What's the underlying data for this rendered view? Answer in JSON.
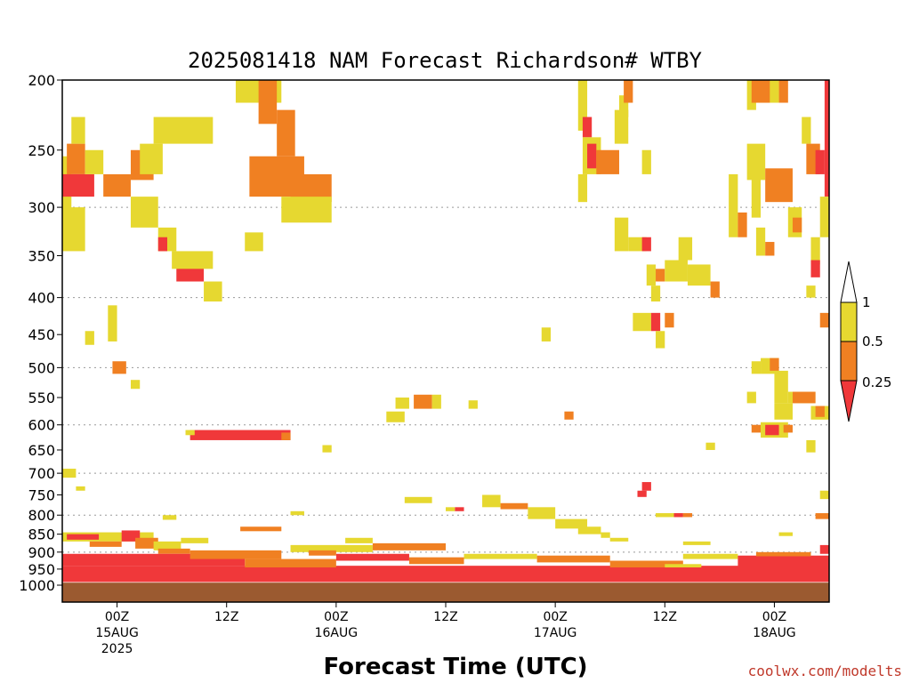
{
  "title": "2025081418 NAM Forecast Richardson# WTBY",
  "xlabel": "Forecast Time (UTC)",
  "credit": "coolwx.com/modelts",
  "colors": {
    "lt_0_25": "#f0383a",
    "r_0_25_0_5": "#f08022",
    "r_0_5_1": "#e6d830",
    "ground": "#9b5a30",
    "grid": "#999999"
  },
  "chart_data": {
    "type": "heatmap",
    "title": "2025081418 NAM Forecast Richardson# WTBY",
    "xlabel": "Forecast Time (UTC)",
    "ylabel": "",
    "y_scale": "log-pressure (inverted)",
    "ylim": [
      1000,
      200
    ],
    "y_ticks": [
      200,
      250,
      300,
      350,
      400,
      450,
      500,
      550,
      600,
      650,
      700,
      750,
      800,
      850,
      900,
      950,
      1000
    ],
    "y_gridlines": [
      300,
      400,
      500,
      600,
      700,
      800,
      900
    ],
    "x_range_hours": [
      0,
      84
    ],
    "x_ticks": [
      {
        "hour": 6,
        "label": "00Z",
        "label2": "15AUG",
        "label3": "2025"
      },
      {
        "hour": 18,
        "label": "12Z",
        "label2": "",
        "label3": ""
      },
      {
        "hour": 30,
        "label": "00Z",
        "label2": "16AUG",
        "label3": ""
      },
      {
        "hour": 42,
        "label": "12Z",
        "label2": "",
        "label3": ""
      },
      {
        "hour": 54,
        "label": "00Z",
        "label2": "17AUG",
        "label3": ""
      },
      {
        "hour": 66,
        "label": "12Z",
        "label2": "",
        "label3": ""
      },
      {
        "hour": 78,
        "label": "00Z",
        "label2": "18AUG",
        "label3": ""
      }
    ],
    "legend": {
      "placement": "right",
      "labels": [
        "1",
        "0.5",
        "0.25"
      ]
    },
    "cells": [
      {
        "t0": 0.0,
        "t1": 1.0,
        "p0": 255,
        "p1": 320,
        "cls": "y"
      },
      {
        "t0": 0.0,
        "t1": 2.5,
        "p0": 300,
        "p1": 345,
        "cls": "y"
      },
      {
        "t0": 0.5,
        "t1": 2.5,
        "p0": 245,
        "p1": 270,
        "cls": "o"
      },
      {
        "t0": 0.0,
        "t1": 3.5,
        "p0": 270,
        "p1": 290,
        "cls": "r"
      },
      {
        "t0": 1.0,
        "t1": 2.5,
        "p0": 225,
        "p1": 245,
        "cls": "y"
      },
      {
        "t0": 2.5,
        "t1": 4.5,
        "p0": 250,
        "p1": 270,
        "cls": "y"
      },
      {
        "t0": 4.5,
        "t1": 7.5,
        "p0": 270,
        "p1": 290,
        "cls": "o"
      },
      {
        "t0": 7.5,
        "t1": 10.0,
        "p0": 250,
        "p1": 275,
        "cls": "o"
      },
      {
        "t0": 10.0,
        "t1": 16.5,
        "p0": 225,
        "p1": 245,
        "cls": "y"
      },
      {
        "t0": 8.5,
        "t1": 11.0,
        "p0": 245,
        "p1": 270,
        "cls": "y"
      },
      {
        "t0": 7.5,
        "t1": 10.5,
        "p0": 290,
        "p1": 320,
        "cls": "y"
      },
      {
        "t0": 10.5,
        "t1": 12.5,
        "p0": 320,
        "p1": 345,
        "cls": "y"
      },
      {
        "t0": 10.5,
        "t1": 11.5,
        "p0": 330,
        "p1": 345,
        "cls": "r"
      },
      {
        "t0": 12.5,
        "t1": 15.5,
        "p0": 355,
        "p1": 380,
        "cls": "r"
      },
      {
        "t0": 12.0,
        "t1": 16.5,
        "p0": 345,
        "p1": 365,
        "cls": "y"
      },
      {
        "t0": 15.5,
        "t1": 17.5,
        "p0": 380,
        "p1": 405,
        "cls": "y"
      },
      {
        "t0": 19.0,
        "t1": 24.0,
        "p0": 200,
        "p1": 215,
        "cls": "y"
      },
      {
        "t0": 21.5,
        "t1": 23.5,
        "p0": 200,
        "p1": 230,
        "cls": "o"
      },
      {
        "t0": 23.5,
        "t1": 25.5,
        "p0": 220,
        "p1": 255,
        "cls": "o"
      },
      {
        "t0": 20.5,
        "t1": 26.5,
        "p0": 255,
        "p1": 290,
        "cls": "o"
      },
      {
        "t0": 25.0,
        "t1": 29.5,
        "p0": 270,
        "p1": 295,
        "cls": "o"
      },
      {
        "t0": 24.0,
        "t1": 29.5,
        "p0": 290,
        "p1": 315,
        "cls": "y"
      },
      {
        "t0": 20.0,
        "t1": 22.0,
        "p0": 325,
        "p1": 345,
        "cls": "y"
      },
      {
        "t0": 5.0,
        "t1": 6.0,
        "p0": 410,
        "p1": 460,
        "cls": "y"
      },
      {
        "t0": 2.5,
        "t1": 3.5,
        "p0": 445,
        "p1": 465,
        "cls": "y"
      },
      {
        "t0": 5.5,
        "t1": 7.0,
        "p0": 490,
        "p1": 510,
        "cls": "o"
      },
      {
        "t0": 7.5,
        "t1": 8.5,
        "p0": 520,
        "p1": 535,
        "cls": "y"
      },
      {
        "t0": 14.0,
        "t1": 25.0,
        "p0": 610,
        "p1": 630,
        "cls": "r"
      },
      {
        "t0": 13.5,
        "t1": 14.5,
        "p0": 610,
        "p1": 620,
        "cls": "y"
      },
      {
        "t0": 24.0,
        "t1": 25.0,
        "p0": 615,
        "p1": 630,
        "cls": "o"
      },
      {
        "t0": 0.0,
        "t1": 1.5,
        "p0": 690,
        "p1": 710,
        "cls": "y"
      },
      {
        "t0": 1.5,
        "t1": 2.5,
        "p0": 730,
        "p1": 740,
        "cls": "y"
      },
      {
        "t0": 28.5,
        "t1": 29.5,
        "p0": 640,
        "p1": 655,
        "cls": "y"
      },
      {
        "t0": 36.5,
        "t1": 38.0,
        "p0": 550,
        "p1": 570,
        "cls": "y"
      },
      {
        "t0": 38.5,
        "t1": 40.5,
        "p0": 545,
        "p1": 570,
        "cls": "o"
      },
      {
        "t0": 40.5,
        "t1": 41.5,
        "p0": 545,
        "p1": 570,
        "cls": "y"
      },
      {
        "t0": 44.5,
        "t1": 45.5,
        "p0": 555,
        "p1": 570,
        "cls": "y"
      },
      {
        "t0": 35.5,
        "t1": 37.5,
        "p0": 575,
        "p1": 595,
        "cls": "y"
      },
      {
        "t0": 52.5,
        "t1": 53.5,
        "p0": 440,
        "p1": 460,
        "cls": "y"
      },
      {
        "t0": 55.0,
        "t1": 56.0,
        "p0": 575,
        "p1": 590,
        "cls": "o"
      },
      {
        "t0": 37.5,
        "t1": 40.5,
        "p0": 755,
        "p1": 770,
        "cls": "y"
      },
      {
        "t0": 46.0,
        "t1": 48.0,
        "p0": 750,
        "p1": 780,
        "cls": "y"
      },
      {
        "t0": 48.0,
        "t1": 51.0,
        "p0": 770,
        "p1": 785,
        "cls": "o"
      },
      {
        "t0": 43.0,
        "t1": 44.0,
        "p0": 780,
        "p1": 790,
        "cls": "r"
      },
      {
        "t0": 42.0,
        "t1": 43.0,
        "p0": 780,
        "p1": 790,
        "cls": "y"
      },
      {
        "t0": 51.0,
        "t1": 54.0,
        "p0": 780,
        "p1": 810,
        "cls": "y"
      },
      {
        "t0": 54.0,
        "t1": 57.5,
        "p0": 810,
        "p1": 835,
        "cls": "y"
      },
      {
        "t0": 56.5,
        "t1": 59.0,
        "p0": 830,
        "p1": 850,
        "cls": "y"
      },
      {
        "t0": 25.0,
        "t1": 26.5,
        "p0": 790,
        "p1": 800,
        "cls": "y"
      },
      {
        "t0": 11.0,
        "t1": 12.5,
        "p0": 800,
        "p1": 812,
        "cls": "y"
      },
      {
        "t0": 19.5,
        "t1": 24.0,
        "p0": 830,
        "p1": 842,
        "cls": "o"
      },
      {
        "t0": 56.5,
        "t1": 57.5,
        "p0": 200,
        "p1": 235,
        "cls": "y"
      },
      {
        "t0": 57.0,
        "t1": 58.0,
        "p0": 225,
        "p1": 240,
        "cls": "r"
      },
      {
        "t0": 57.0,
        "t1": 59.0,
        "p0": 240,
        "p1": 270,
        "cls": "y"
      },
      {
        "t0": 57.5,
        "t1": 58.5,
        "p0": 245,
        "p1": 265,
        "cls": "r"
      },
      {
        "t0": 58.5,
        "t1": 61.0,
        "p0": 250,
        "p1": 270,
        "cls": "o"
      },
      {
        "t0": 60.5,
        "t1": 62.0,
        "p0": 220,
        "p1": 245,
        "cls": "y"
      },
      {
        "t0": 61.0,
        "t1": 62.0,
        "p0": 210,
        "p1": 225,
        "cls": "y"
      },
      {
        "t0": 61.5,
        "t1": 62.5,
        "p0": 200,
        "p1": 215,
        "cls": "o"
      },
      {
        "t0": 56.5,
        "t1": 57.5,
        "p0": 270,
        "p1": 295,
        "cls": "y"
      },
      {
        "t0": 63.5,
        "t1": 64.5,
        "p0": 250,
        "p1": 270,
        "cls": "y"
      },
      {
        "t0": 60.5,
        "t1": 62.0,
        "p0": 310,
        "p1": 345,
        "cls": "y"
      },
      {
        "t0": 62.0,
        "t1": 64.0,
        "p0": 330,
        "p1": 345,
        "cls": "y"
      },
      {
        "t0": 63.5,
        "t1": 64.5,
        "p0": 330,
        "p1": 345,
        "cls": "r"
      },
      {
        "t0": 64.0,
        "t1": 65.0,
        "p0": 360,
        "p1": 385,
        "cls": "y"
      },
      {
        "t0": 65.0,
        "t1": 66.0,
        "p0": 365,
        "p1": 380,
        "cls": "o"
      },
      {
        "t0": 66.0,
        "t1": 68.5,
        "p0": 355,
        "p1": 380,
        "cls": "y"
      },
      {
        "t0": 67.5,
        "t1": 69.0,
        "p0": 330,
        "p1": 355,
        "cls": "y"
      },
      {
        "t0": 68.5,
        "t1": 71.0,
        "p0": 360,
        "p1": 385,
        "cls": "y"
      },
      {
        "t0": 71.0,
        "t1": 72.0,
        "p0": 380,
        "p1": 400,
        "cls": "o"
      },
      {
        "t0": 64.5,
        "t1": 65.5,
        "p0": 385,
        "p1": 405,
        "cls": "y"
      },
      {
        "t0": 62.5,
        "t1": 64.5,
        "p0": 420,
        "p1": 445,
        "cls": "y"
      },
      {
        "t0": 64.5,
        "t1": 65.5,
        "p0": 420,
        "p1": 445,
        "cls": "r"
      },
      {
        "t0": 65.0,
        "t1": 66.0,
        "p0": 445,
        "p1": 470,
        "cls": "y"
      },
      {
        "t0": 66.0,
        "t1": 67.0,
        "p0": 420,
        "p1": 440,
        "cls": "o"
      },
      {
        "t0": 76.0,
        "t1": 78.5,
        "p0": 200,
        "p1": 215,
        "cls": "y"
      },
      {
        "t0": 75.0,
        "t1": 76.0,
        "p0": 200,
        "p1": 220,
        "cls": "y"
      },
      {
        "t0": 75.5,
        "t1": 77.5,
        "p0": 200,
        "p1": 215,
        "cls": "o"
      },
      {
        "t0": 78.5,
        "t1": 79.5,
        "p0": 200,
        "p1": 215,
        "cls": "o"
      },
      {
        "t0": 75.0,
        "t1": 77.0,
        "p0": 245,
        "p1": 275,
        "cls": "y"
      },
      {
        "t0": 77.0,
        "t1": 80.0,
        "p0": 265,
        "p1": 295,
        "cls": "o"
      },
      {
        "t0": 73.0,
        "t1": 74.0,
        "p0": 270,
        "p1": 330,
        "cls": "y"
      },
      {
        "t0": 74.0,
        "t1": 75.0,
        "p0": 305,
        "p1": 330,
        "cls": "o"
      },
      {
        "t0": 75.5,
        "t1": 76.5,
        "p0": 270,
        "p1": 310,
        "cls": "y"
      },
      {
        "t0": 76.0,
        "t1": 77.0,
        "p0": 320,
        "p1": 350,
        "cls": "y"
      },
      {
        "t0": 77.0,
        "t1": 78.0,
        "p0": 335,
        "p1": 350,
        "cls": "o"
      },
      {
        "t0": 79.5,
        "t1": 81.0,
        "p0": 300,
        "p1": 330,
        "cls": "y"
      },
      {
        "t0": 80.0,
        "t1": 81.0,
        "p0": 310,
        "p1": 325,
        "cls": "o"
      },
      {
        "t0": 81.0,
        "t1": 82.0,
        "p0": 225,
        "p1": 245,
        "cls": "y"
      },
      {
        "t0": 81.5,
        "t1": 83.0,
        "p0": 245,
        "p1": 270,
        "cls": "o"
      },
      {
        "t0": 82.5,
        "t1": 83.5,
        "p0": 250,
        "p1": 270,
        "cls": "r"
      },
      {
        "t0": 83.5,
        "t1": 84.0,
        "p0": 200,
        "p1": 290,
        "cls": "r"
      },
      {
        "t0": 82.0,
        "t1": 83.0,
        "p0": 330,
        "p1": 360,
        "cls": "y"
      },
      {
        "t0": 82.0,
        "t1": 83.0,
        "p0": 355,
        "p1": 375,
        "cls": "r"
      },
      {
        "t0": 83.0,
        "t1": 84.0,
        "p0": 290,
        "p1": 330,
        "cls": "y"
      },
      {
        "t0": 81.5,
        "t1": 82.5,
        "p0": 385,
        "p1": 400,
        "cls": "y"
      },
      {
        "t0": 83.0,
        "t1": 84.0,
        "p0": 420,
        "p1": 440,
        "cls": "o"
      },
      {
        "t0": 75.5,
        "t1": 76.5,
        "p0": 490,
        "p1": 510,
        "cls": "y"
      },
      {
        "t0": 76.5,
        "t1": 78.5,
        "p0": 485,
        "p1": 510,
        "cls": "y"
      },
      {
        "t0": 77.5,
        "t1": 78.5,
        "p0": 485,
        "p1": 505,
        "cls": "o"
      },
      {
        "t0": 78.0,
        "t1": 79.5,
        "p0": 505,
        "p1": 560,
        "cls": "y"
      },
      {
        "t0": 79.5,
        "t1": 82.5,
        "p0": 540,
        "p1": 560,
        "cls": "y"
      },
      {
        "t0": 80.0,
        "t1": 82.5,
        "p0": 540,
        "p1": 560,
        "cls": "o"
      },
      {
        "t0": 78.0,
        "t1": 80.0,
        "p0": 560,
        "p1": 590,
        "cls": "y"
      },
      {
        "t0": 82.0,
        "t1": 84.0,
        "p0": 565,
        "p1": 590,
        "cls": "y"
      },
      {
        "t0": 82.5,
        "t1": 83.5,
        "p0": 565,
        "p1": 585,
        "cls": "o"
      },
      {
        "t0": 76.5,
        "t1": 79.5,
        "p0": 595,
        "p1": 625,
        "cls": "y"
      },
      {
        "t0": 77.0,
        "t1": 78.5,
        "p0": 600,
        "p1": 620,
        "cls": "r"
      },
      {
        "t0": 75.5,
        "t1": 76.5,
        "p0": 600,
        "p1": 615,
        "cls": "o"
      },
      {
        "t0": 79.0,
        "t1": 80.0,
        "p0": 600,
        "p1": 615,
        "cls": "o"
      },
      {
        "t0": 75.0,
        "t1": 76.0,
        "p0": 540,
        "p1": 560,
        "cls": "y"
      },
      {
        "t0": 81.5,
        "t1": 82.5,
        "p0": 630,
        "p1": 655,
        "cls": "y"
      },
      {
        "t0": 70.5,
        "t1": 71.5,
        "p0": 635,
        "p1": 650,
        "cls": "y"
      },
      {
        "t0": 63.5,
        "t1": 64.5,
        "p0": 720,
        "p1": 740,
        "cls": "r"
      },
      {
        "t0": 63.0,
        "t1": 64.0,
        "p0": 740,
        "p1": 755,
        "cls": "r"
      },
      {
        "t0": 83.0,
        "t1": 84.0,
        "p0": 740,
        "p1": 760,
        "cls": "y"
      },
      {
        "t0": 65.0,
        "t1": 68.0,
        "p0": 795,
        "p1": 805,
        "cls": "y"
      },
      {
        "t0": 67.0,
        "t1": 68.0,
        "p0": 795,
        "p1": 805,
        "cls": "r"
      },
      {
        "t0": 68.0,
        "t1": 69.0,
        "p0": 795,
        "p1": 805,
        "cls": "o"
      },
      {
        "t0": 82.5,
        "t1": 84.0,
        "p0": 795,
        "p1": 810,
        "cls": "o"
      },
      {
        "t0": 59.0,
        "t1": 60.0,
        "p0": 845,
        "p1": 860,
        "cls": "y"
      },
      {
        "t0": 60.0,
        "t1": 62.0,
        "p0": 860,
        "p1": 870,
        "cls": "y"
      },
      {
        "t0": 68.0,
        "t1": 71.0,
        "p0": 870,
        "p1": 880,
        "cls": "y"
      },
      {
        "t0": 78.5,
        "t1": 80.0,
        "p0": 845,
        "p1": 855,
        "cls": "y"
      },
      {
        "t0": 83.0,
        "t1": 84.0,
        "p0": 880,
        "p1": 905,
        "cls": "r"
      },
      {
        "t0": 0.0,
        "t1": 10.0,
        "p0": 845,
        "p1": 870,
        "cls": "y"
      },
      {
        "t0": 0.5,
        "t1": 4.0,
        "p0": 850,
        "p1": 865,
        "cls": "r"
      },
      {
        "t0": 6.5,
        "t1": 8.5,
        "p0": 840,
        "p1": 870,
        "cls": "r"
      },
      {
        "t0": 8.0,
        "t1": 10.5,
        "p0": 860,
        "p1": 890,
        "cls": "o"
      },
      {
        "t0": 10.0,
        "t1": 13.0,
        "p0": 870,
        "p1": 895,
        "cls": "y"
      },
      {
        "t0": 13.0,
        "t1": 16.0,
        "p0": 860,
        "p1": 875,
        "cls": "y"
      },
      {
        "t0": 3.0,
        "t1": 6.5,
        "p0": 870,
        "p1": 885,
        "cls": "o"
      },
      {
        "t0": 10.5,
        "t1": 14.0,
        "p0": 890,
        "p1": 905,
        "cls": "o"
      },
      {
        "t0": 0.0,
        "t1": 84.0,
        "p0": 940,
        "p1": 990,
        "cls": "r"
      },
      {
        "t0": 0.0,
        "t1": 20.0,
        "p0": 905,
        "p1": 940,
        "cls": "r"
      },
      {
        "t0": 14.0,
        "t1": 24.0,
        "p0": 895,
        "p1": 920,
        "cls": "o"
      },
      {
        "t0": 20.0,
        "t1": 30.0,
        "p0": 920,
        "p1": 945,
        "cls": "o"
      },
      {
        "t0": 25.0,
        "t1": 34.0,
        "p0": 880,
        "p1": 900,
        "cls": "y"
      },
      {
        "t0": 27.0,
        "t1": 30.0,
        "p0": 895,
        "p1": 910,
        "cls": "o"
      },
      {
        "t0": 30.0,
        "t1": 38.0,
        "p0": 905,
        "p1": 925,
        "cls": "r"
      },
      {
        "t0": 34.0,
        "t1": 42.0,
        "p0": 875,
        "p1": 895,
        "cls": "o"
      },
      {
        "t0": 31.0,
        "t1": 34.0,
        "p0": 860,
        "p1": 875,
        "cls": "y"
      },
      {
        "t0": 38.0,
        "t1": 44.0,
        "p0": 915,
        "p1": 935,
        "cls": "o"
      },
      {
        "t0": 44.0,
        "t1": 52.0,
        "p0": 905,
        "p1": 920,
        "cls": "y"
      },
      {
        "t0": 52.0,
        "t1": 60.0,
        "p0": 910,
        "p1": 930,
        "cls": "o"
      },
      {
        "t0": 60.0,
        "t1": 68.0,
        "p0": 925,
        "p1": 945,
        "cls": "o"
      },
      {
        "t0": 68.0,
        "t1": 74.0,
        "p0": 905,
        "p1": 920,
        "cls": "y"
      },
      {
        "t0": 74.0,
        "t1": 84.0,
        "p0": 910,
        "p1": 945,
        "cls": "r"
      },
      {
        "t0": 76.0,
        "t1": 82.0,
        "p0": 900,
        "p1": 912,
        "cls": "o"
      },
      {
        "t0": 66.0,
        "t1": 70.0,
        "p0": 935,
        "p1": 945,
        "cls": "y"
      }
    ],
    "ground_top_hPa": 992
  }
}
